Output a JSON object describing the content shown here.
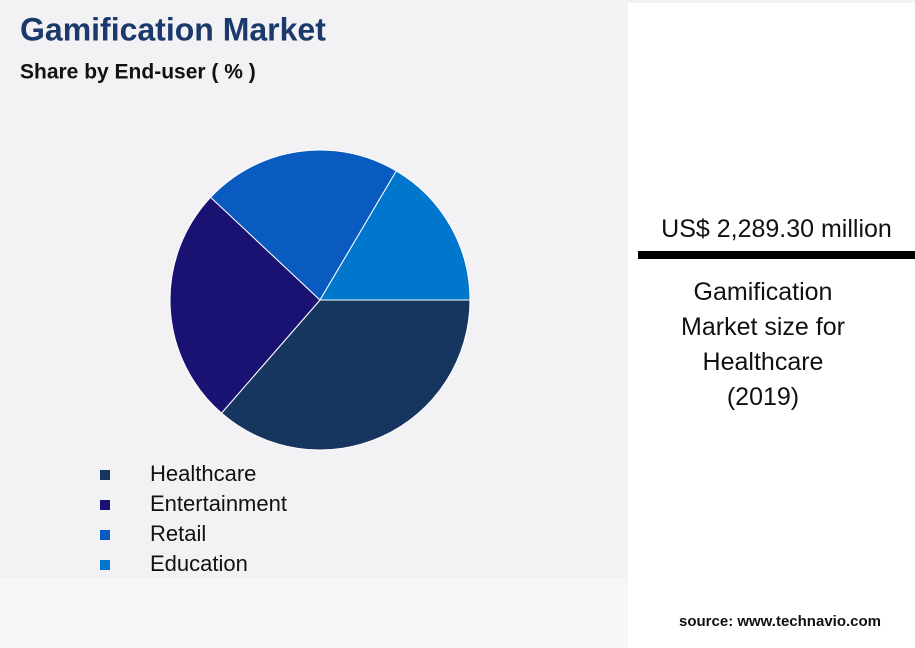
{
  "chart_data": {
    "type": "pie",
    "title": "Gamification Market",
    "subtitle": "Share by End-user ( % )",
    "categories": [
      "Healthcare",
      "Entertainment",
      "Retail",
      "Education"
    ],
    "values": [
      36.4,
      25.6,
      21.5,
      16.5
    ],
    "colors": [
      "#16355f",
      "#1a1273",
      "#0a5bbf",
      "#0077cc"
    ]
  },
  "highlight": {
    "amount": "US$ 2,289.30 million",
    "caption": "Gamification Market size for Healthcare (2019)"
  },
  "source": "source: www.technavio.com"
}
